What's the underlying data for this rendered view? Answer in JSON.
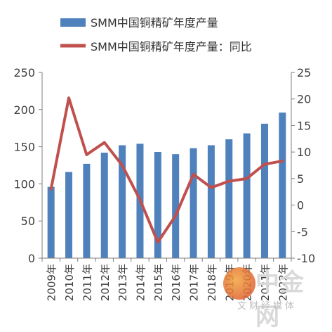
{
  "chart_data": {
    "type": "bar+line",
    "categories": [
      "2009年",
      "2010年",
      "2011年",
      "2012年",
      "2013年",
      "2014年",
      "2015年",
      "2016年",
      "2017年",
      "2018年",
      "2019年",
      "2020年",
      "2021年",
      "2022年"
    ],
    "series": [
      {
        "name": "SMM中国铜精矿年度产量",
        "type": "bar",
        "axis": "left",
        "color": "#4F81BD",
        "values": [
          96,
          116,
          127,
          142,
          152,
          154,
          143,
          140,
          148,
          152,
          160,
          168,
          181,
          196
        ]
      },
      {
        "name": "SMM中国铜精矿年度产量：同比",
        "type": "line",
        "axis": "right",
        "color": "#C0504D",
        "values": [
          3.0,
          20.2,
          9.5,
          11.8,
          7.5,
          1.0,
          -7.0,
          -2.0,
          5.8,
          3.3,
          4.5,
          5.0,
          7.7,
          8.3
        ]
      }
    ],
    "left_axis": {
      "min": 0,
      "max": 250,
      "ticks": [
        0,
        50,
        100,
        150,
        200,
        250
      ]
    },
    "right_axis": {
      "min": -10,
      "max": 25,
      "ticks": [
        -10,
        -5,
        0,
        5,
        10,
        15,
        20,
        25
      ]
    },
    "legend_placement": "top-left",
    "grid": false
  },
  "watermark": {
    "text": "中金网",
    "subtext": "文财经媒体"
  }
}
